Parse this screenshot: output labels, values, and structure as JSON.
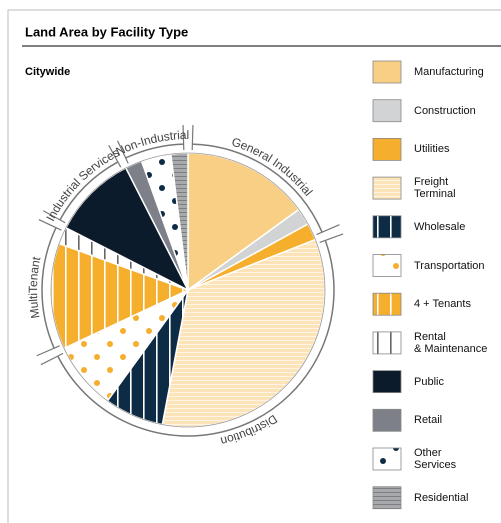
{
  "chart_data": {
    "type": "pie",
    "title": "Land Area by Facility Type",
    "subtitle": "Citywide",
    "categories": [
      "Manufacturing",
      "Construction",
      "Utilities",
      "Freight\nTerminal",
      "Wholesale",
      "Transportation",
      "4 + Tenants",
      "Rental\n& Maintenance",
      "Public",
      "Retail",
      "Other\nServices",
      "Residential"
    ],
    "values": [
      15,
      2,
      2,
      34,
      7,
      8,
      12.5,
      2,
      10,
      2,
      3.5,
      2
    ],
    "colors": [
      "#f9cf86",
      "#d2d3d5",
      "#f6ae2d",
      "#fde3b8",
      "#0d2b45",
      "#ffffff",
      "#f6ae2d",
      "#ffffff",
      "#0b1b2b",
      "#7d8088",
      "#ffffff",
      "#a7a9ac"
    ],
    "groups": [
      "General Industrial",
      "Distribution",
      "MultiTenant",
      "Industrial Services",
      "Non-Industrial"
    ],
    "legend": "right"
  }
}
